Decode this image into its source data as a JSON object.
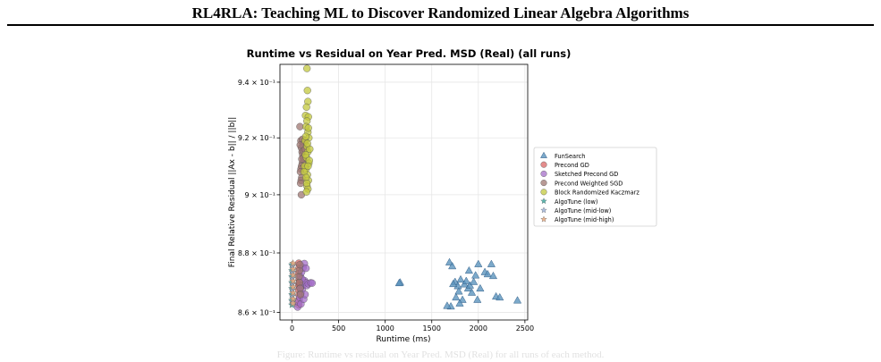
{
  "page": {
    "header_title": "RL4RLA: Teaching ML to Discover Randomized Linear Algebra Algorithms"
  },
  "chart_data": {
    "type": "scatter",
    "title": "Runtime vs Residual on Year Pred. MSD (Real) (all runs)",
    "xlabel": "Runtime (ms)",
    "ylabel": "Final Relative Residual ||Ax - b|| / ||b||",
    "xlim": [
      -130,
      2530
    ],
    "ylim": [
      0.8575,
      0.9465
    ],
    "y_scale": "log",
    "grid": true,
    "legend_position": "right, outside plot",
    "x_ticks": [
      0,
      500,
      1000,
      1500,
      2000,
      2500
    ],
    "x_tick_labels": [
      "0",
      "500",
      "1000",
      "1500",
      "2000",
      "2500"
    ],
    "y_ticks": [
      0.86,
      0.88,
      0.9,
      0.92,
      0.94
    ],
    "y_tick_labels": [
      "8.6 × 10⁻¹",
      "8.8 × 10⁻¹",
      "9 × 10⁻¹",
      "9.2 × 10⁻¹",
      "9.4 × 10⁻¹"
    ],
    "series": [
      {
        "name": "FunSearch",
        "marker": "triangle",
        "color": "#5b93bd",
        "points": [
          [
            1160,
            0.87
          ],
          [
            1150,
            0.8698
          ],
          [
            1690,
            0.8768
          ],
          [
            1720,
            0.8755
          ],
          [
            1705,
            0.862
          ],
          [
            1665,
            0.8622
          ],
          [
            1750,
            0.8702
          ],
          [
            1780,
            0.8688
          ],
          [
            1790,
            0.867
          ],
          [
            1760,
            0.865
          ],
          [
            1810,
            0.871
          ],
          [
            1830,
            0.8642
          ],
          [
            1850,
            0.8694
          ],
          [
            1870,
            0.8705
          ],
          [
            1890,
            0.868
          ],
          [
            1910,
            0.869
          ],
          [
            1930,
            0.8666
          ],
          [
            1950,
            0.8702
          ],
          [
            1970,
            0.8724
          ],
          [
            2000,
            0.8762
          ],
          [
            1990,
            0.8642
          ],
          [
            2020,
            0.868
          ],
          [
            2070,
            0.8735
          ],
          [
            2100,
            0.8728
          ],
          [
            2140,
            0.8762
          ],
          [
            2160,
            0.8722
          ],
          [
            2190,
            0.8653
          ],
          [
            2230,
            0.865
          ],
          [
            2420,
            0.864
          ],
          [
            1800,
            0.863
          ],
          [
            1900,
            0.874
          ],
          [
            1730,
            0.8695
          ]
        ]
      },
      {
        "name": "Precond GD",
        "marker": "circle",
        "color": "#d96666",
        "points": [
          [
            72,
            0.8765
          ],
          [
            74,
            0.8748
          ],
          [
            70,
            0.873
          ],
          [
            76,
            0.8712
          ],
          [
            73,
            0.8694
          ],
          [
            71,
            0.8676
          ],
          [
            75,
            0.8658
          ],
          [
            74,
            0.864
          ],
          [
            72,
            0.8625
          ],
          [
            80,
            0.8702
          ],
          [
            78,
            0.8688
          ]
        ]
      },
      {
        "name": "Sketched Precond GD",
        "marker": "circle",
        "color": "#a46ec8",
        "points": [
          [
            60,
            0.8618
          ],
          [
            68,
            0.8635
          ],
          [
            82,
            0.865
          ],
          [
            95,
            0.8664
          ],
          [
            110,
            0.8678
          ],
          [
            120,
            0.8692
          ],
          [
            135,
            0.8706
          ],
          [
            145,
            0.87
          ],
          [
            160,
            0.869
          ],
          [
            175,
            0.8696
          ],
          [
            200,
            0.8699
          ],
          [
            215,
            0.8698
          ],
          [
            90,
            0.872
          ],
          [
            102,
            0.8735
          ],
          [
            118,
            0.875
          ],
          [
            132,
            0.8764
          ],
          [
            150,
            0.8748
          ],
          [
            95,
            0.8628
          ],
          [
            125,
            0.8644
          ],
          [
            140,
            0.866
          ],
          [
            105,
            0.8712
          ],
          [
            88,
            0.8682
          ]
        ]
      },
      {
        "name": "Precond Weighted SGD",
        "marker": "circle",
        "color": "#9f7772",
        "points": [
          [
            85,
            0.924
          ],
          [
            95,
            0.919
          ],
          [
            100,
            0.9165
          ],
          [
            108,
            0.915
          ],
          [
            115,
            0.914
          ],
          [
            120,
            0.913
          ],
          [
            125,
            0.912
          ],
          [
            110,
            0.911
          ],
          [
            102,
            0.91
          ],
          [
            96,
            0.909
          ],
          [
            90,
            0.908
          ],
          [
            104,
            0.906
          ],
          [
            98,
            0.905
          ],
          [
            92,
            0.904
          ],
          [
            100,
            0.9
          ],
          [
            112,
            0.9195
          ],
          [
            118,
            0.9175
          ],
          [
            122,
            0.9155
          ],
          [
            105,
            0.9125
          ],
          [
            135,
            0.9185
          ],
          [
            140,
            0.916
          ],
          [
            88,
            0.9175
          ],
          [
            75,
            0.872
          ],
          [
            80,
            0.87
          ],
          [
            86,
            0.868
          ],
          [
            90,
            0.866
          ],
          [
            78,
            0.874
          ],
          [
            84,
            0.876
          ]
        ]
      },
      {
        "name": "Block Randomized Kaczmarz",
        "marker": "circle",
        "color": "#c3c83e",
        "points": [
          [
            160,
            0.945
          ],
          [
            165,
            0.937
          ],
          [
            170,
            0.933
          ],
          [
            155,
            0.931
          ],
          [
            145,
            0.928
          ],
          [
            175,
            0.9275
          ],
          [
            160,
            0.926
          ],
          [
            150,
            0.924
          ],
          [
            170,
            0.922
          ],
          [
            180,
            0.92
          ],
          [
            140,
            0.919
          ],
          [
            160,
            0.917
          ],
          [
            170,
            0.915
          ],
          [
            155,
            0.913
          ],
          [
            180,
            0.911
          ],
          [
            150,
            0.909
          ],
          [
            165,
            0.907
          ],
          [
            175,
            0.905
          ],
          [
            160,
            0.903
          ],
          [
            170,
            0.902
          ],
          [
            155,
            0.901
          ],
          [
            185,
            0.912
          ],
          [
            145,
            0.914
          ],
          [
            190,
            0.916
          ],
          [
            135,
            0.91
          ],
          [
            130,
            0.908
          ],
          [
            150,
            0.906
          ],
          [
            165,
            0.918
          ],
          [
            148,
            0.9205
          ],
          [
            175,
            0.9235
          ],
          [
            158,
            0.904
          ],
          [
            172,
            0.91
          ]
        ]
      },
      {
        "name": "AlgoTune (low)",
        "marker": "star",
        "color": "#3fa8a0",
        "points": [
          [
            -2,
            0.876
          ],
          [
            -2,
            0.874
          ],
          [
            -2,
            0.872
          ],
          [
            -2,
            0.87
          ],
          [
            -2,
            0.868
          ],
          [
            -2,
            0.866
          ],
          [
            -2,
            0.864
          ],
          [
            -2,
            0.8625
          ]
        ]
      },
      {
        "name": "AlgoTune (mid-low)",
        "marker": "star",
        "color": "#9fb3d8",
        "points": [
          [
            4,
            0.8755
          ],
          [
            4,
            0.8735
          ],
          [
            4,
            0.8715
          ],
          [
            4,
            0.8695
          ],
          [
            4,
            0.8675
          ],
          [
            4,
            0.8655
          ],
          [
            4,
            0.8635
          ]
        ]
      },
      {
        "name": "AlgoTune (mid-high)",
        "marker": "star",
        "color": "#e8a87c",
        "points": [
          [
            10,
            0.8765
          ],
          [
            10,
            0.8745
          ],
          [
            10,
            0.8725
          ],
          [
            10,
            0.8705
          ],
          [
            10,
            0.8685
          ],
          [
            10,
            0.8665
          ],
          [
            10,
            0.8645
          ],
          [
            10,
            0.863
          ]
        ]
      }
    ]
  },
  "caption": {
    "text": "Figure: Runtime vs residual on Year Pred. MSD (Real) for all runs of each method."
  }
}
